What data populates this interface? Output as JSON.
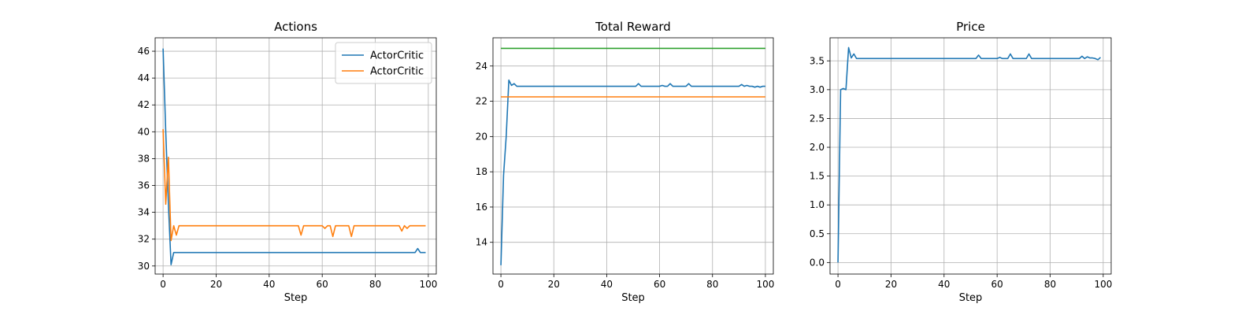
{
  "chart_data": [
    {
      "type": "line",
      "title": "Actions",
      "xlabel": "Step",
      "ylabel": "",
      "xlim": [
        -3,
        103
      ],
      "ylim": [
        29.4,
        47.0
      ],
      "xticks": [
        0,
        20,
        40,
        60,
        80,
        100
      ],
      "yticks": [
        30,
        32,
        34,
        36,
        38,
        40,
        42,
        44,
        46
      ],
      "grid": true,
      "legend": "top-right",
      "series": [
        {
          "name": "ActorCritic",
          "color": "#1f77b4",
          "points": [
            [
              0,
              46.2
            ],
            [
              1,
              40.0
            ],
            [
              2,
              34.6
            ],
            [
              3,
              30.1
            ],
            [
              4,
              31.0
            ],
            [
              5,
              31.0
            ],
            [
              6,
              31.0
            ],
            [
              95,
              31.0
            ],
            [
              96,
              31.3
            ],
            [
              97,
              31.0
            ],
            [
              99,
              31.0
            ]
          ]
        },
        {
          "name": "ActorCritic",
          "color": "#ff7f0e",
          "points": [
            [
              0,
              40.2
            ],
            [
              1,
              34.6
            ],
            [
              2,
              38.1
            ],
            [
              3,
              31.9
            ],
            [
              4,
              33.0
            ],
            [
              5,
              32.3
            ],
            [
              6,
              33.0
            ],
            [
              51,
              33.0
            ],
            [
              52,
              32.3
            ],
            [
              53,
              33.0
            ],
            [
              60,
              33.0
            ],
            [
              61,
              32.8
            ],
            [
              62,
              33.0
            ],
            [
              63,
              33.0
            ],
            [
              64,
              32.2
            ],
            [
              65,
              33.0
            ],
            [
              70,
              33.0
            ],
            [
              71,
              32.2
            ],
            [
              72,
              33.0
            ],
            [
              89,
              33.0
            ],
            [
              90,
              32.6
            ],
            [
              91,
              33.0
            ],
            [
              92,
              32.8
            ],
            [
              93,
              33.0
            ],
            [
              99,
              33.0
            ]
          ]
        }
      ]
    },
    {
      "type": "line",
      "title": "Total Reward",
      "xlabel": "Step",
      "ylabel": "",
      "xlim": [
        -3,
        103
      ],
      "ylim": [
        12.2,
        25.6
      ],
      "xticks": [
        0,
        20,
        40,
        60,
        80,
        100
      ],
      "yticks": [
        14,
        16,
        18,
        20,
        22,
        24
      ],
      "grid": true,
      "series": [
        {
          "color": "#1f77b4",
          "points": [
            [
              0,
              12.7
            ],
            [
              1,
              17.8
            ],
            [
              2,
              20.0
            ],
            [
              3,
              23.2
            ],
            [
              4,
              22.9
            ],
            [
              5,
              23.0
            ],
            [
              6,
              22.85
            ],
            [
              51,
              22.85
            ],
            [
              52,
              23.0
            ],
            [
              53,
              22.85
            ],
            [
              60,
              22.85
            ],
            [
              61,
              22.9
            ],
            [
              62,
              22.85
            ],
            [
              63,
              22.85
            ],
            [
              64,
              23.0
            ],
            [
              65,
              22.85
            ],
            [
              70,
              22.85
            ],
            [
              71,
              23.0
            ],
            [
              72,
              22.85
            ],
            [
              90,
              22.85
            ],
            [
              91,
              22.95
            ],
            [
              92,
              22.85
            ],
            [
              93,
              22.9
            ],
            [
              94,
              22.85
            ],
            [
              95,
              22.85
            ],
            [
              96,
              22.8
            ],
            [
              97,
              22.85
            ],
            [
              98,
              22.8
            ],
            [
              99,
              22.85
            ],
            [
              100,
              22.85
            ]
          ]
        },
        {
          "color": "#ff7f0e",
          "points": [
            [
              0,
              22.25
            ],
            [
              100,
              22.25
            ]
          ]
        },
        {
          "color": "#2ca02c",
          "points": [
            [
              0,
              25.0
            ],
            [
              100,
              25.0
            ]
          ]
        }
      ]
    },
    {
      "type": "line",
      "title": "Price",
      "xlabel": "Step",
      "ylabel": "",
      "xlim": [
        -3,
        103
      ],
      "ylim": [
        -0.2,
        3.9
      ],
      "xticks": [
        0,
        20,
        40,
        60,
        80,
        100
      ],
      "yticks": [
        0.0,
        0.5,
        1.0,
        1.5,
        2.0,
        2.5,
        3.0,
        3.5
      ],
      "ytick_labels": [
        "0.0",
        "0.5",
        "1.0",
        "1.5",
        "2.0",
        "2.5",
        "3.0",
        "3.5"
      ],
      "grid": true,
      "series": [
        {
          "color": "#1f77b4",
          "points": [
            [
              0,
              0.0
            ],
            [
              1,
              3.0
            ],
            [
              2,
              3.02
            ],
            [
              3,
              3.0
            ],
            [
              4,
              3.73
            ],
            [
              5,
              3.55
            ],
            [
              6,
              3.62
            ],
            [
              7,
              3.54
            ],
            [
              52,
              3.54
            ],
            [
              53,
              3.6
            ],
            [
              54,
              3.54
            ],
            [
              60,
              3.54
            ],
            [
              61,
              3.56
            ],
            [
              62,
              3.54
            ],
            [
              64,
              3.54
            ],
            [
              65,
              3.62
            ],
            [
              66,
              3.54
            ],
            [
              71,
              3.54
            ],
            [
              72,
              3.62
            ],
            [
              73,
              3.54
            ],
            [
              91,
              3.54
            ],
            [
              92,
              3.58
            ],
            [
              93,
              3.54
            ],
            [
              94,
              3.57
            ],
            [
              95,
              3.55
            ],
            [
              96,
              3.55
            ],
            [
              97,
              3.54
            ],
            [
              98,
              3.52
            ],
            [
              99,
              3.56
            ]
          ]
        }
      ]
    }
  ]
}
